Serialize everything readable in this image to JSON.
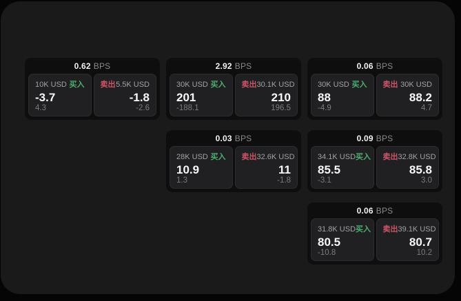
{
  "labels": {
    "buy": "买入",
    "sell": "卖出",
    "bps": "BPS"
  },
  "colors": {
    "page_background": "#050505",
    "panel_background": "#1a1a1b",
    "card_background": "#0e0e0f",
    "tile_background": "#202022",
    "buy_green": "#4caf6e",
    "sell_red": "#cc5566"
  },
  "cards": [
    {
      "bps": "0.62",
      "buy": {
        "amount": "10K USD",
        "value": "-3.7",
        "sub": "4.3"
      },
      "sell": {
        "amount": "5.5K USD",
        "value": "-1.8",
        "sub": "-2.6"
      }
    },
    {
      "bps": "2.92",
      "buy": {
        "amount": "30K USD",
        "value": "201",
        "sub": "-188.1"
      },
      "sell": {
        "amount": "30.1K USD",
        "value": "210",
        "sub": "196.5"
      }
    },
    {
      "bps": "0.06",
      "buy": {
        "amount": "30K USD",
        "value": "88",
        "sub": "-4.9"
      },
      "sell": {
        "amount": "30K USD",
        "value": "88.2",
        "sub": "4.7"
      }
    },
    {
      "bps": "0.03",
      "buy": {
        "amount": "28K USD",
        "value": "10.9",
        "sub": "1.3"
      },
      "sell": {
        "amount": "32.6K USD",
        "value": "11",
        "sub": "-1.8"
      }
    },
    {
      "bps": "0.09",
      "buy": {
        "amount": "34.1K USD",
        "value": "85.5",
        "sub": "-3.1"
      },
      "sell": {
        "amount": "32.8K USD",
        "value": "85.8",
        "sub": "3.0"
      }
    },
    {
      "bps": "0.06",
      "buy": {
        "amount": "31.8K USD",
        "value": "80.5",
        "sub": "-10.8"
      },
      "sell": {
        "amount": "39.1K USD",
        "value": "80.7",
        "sub": "10.2"
      }
    }
  ]
}
